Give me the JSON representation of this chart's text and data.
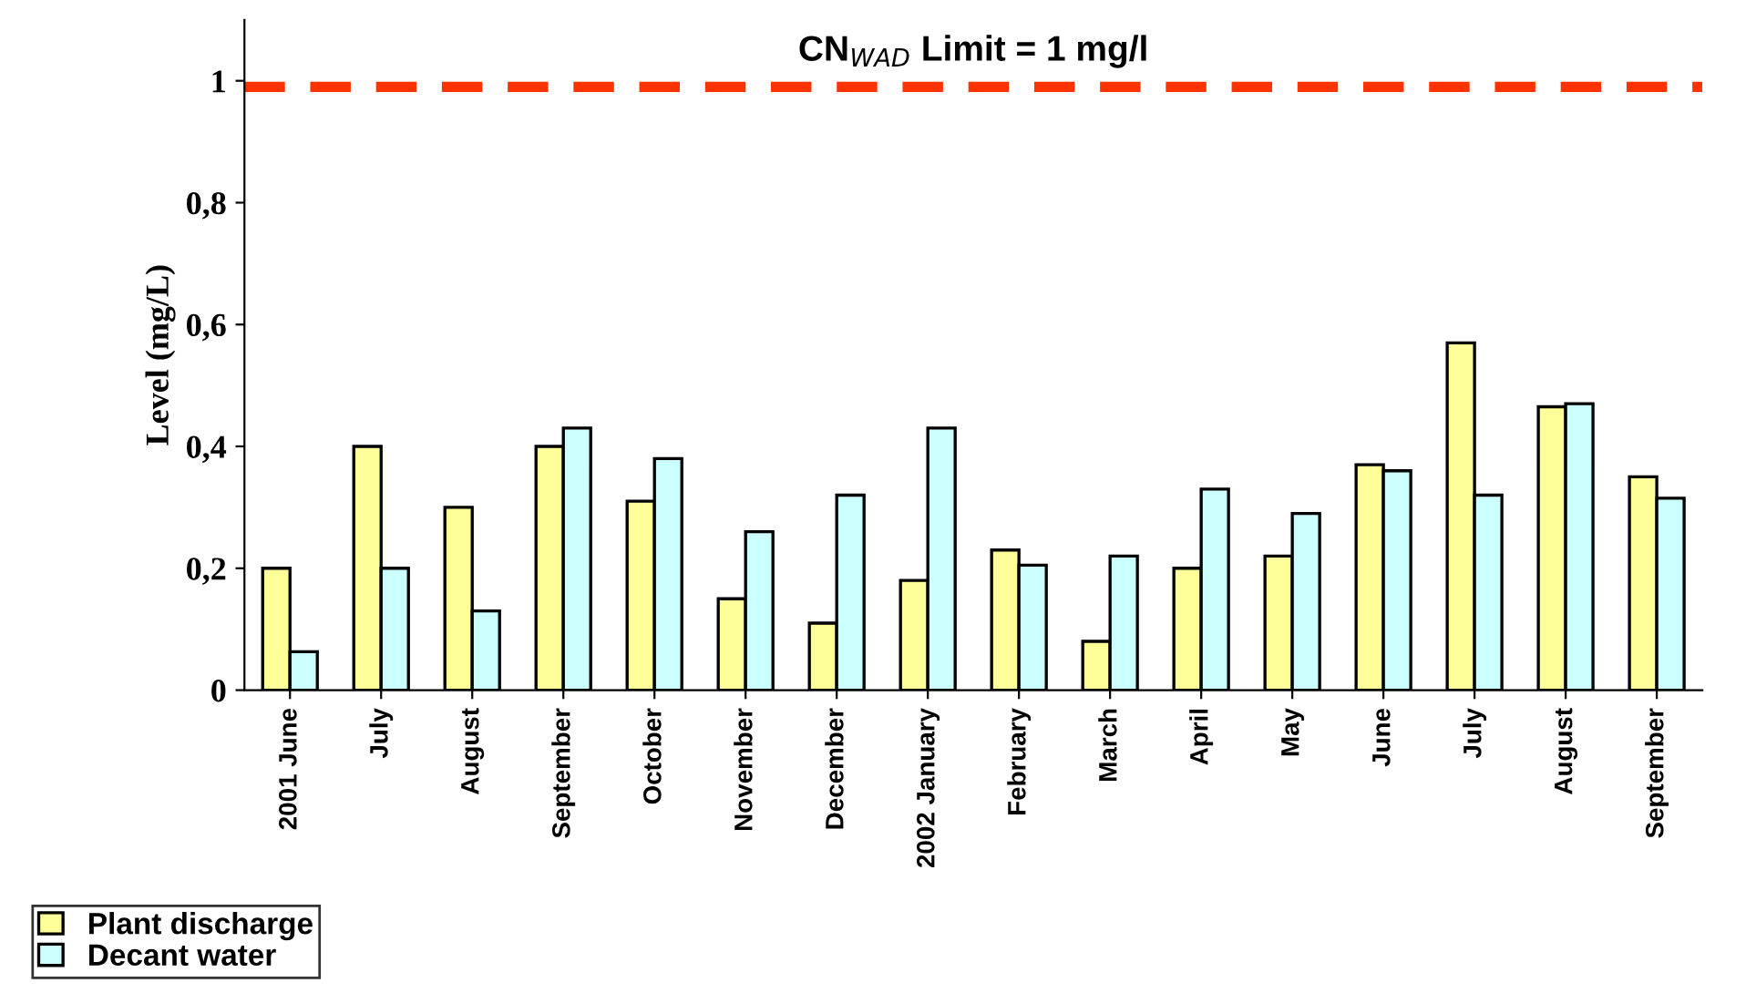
{
  "chart_data": {
    "type": "bar",
    "ylabel": "Level (mg/L)",
    "categories": [
      "2001 June",
      "July",
      "August",
      "September",
      "October",
      "November",
      "December",
      "2002 January",
      "February",
      "March",
      "April",
      "May",
      "June",
      "July",
      "August",
      "September"
    ],
    "series": [
      {
        "name": "Plant discharge",
        "color": "#ffff99",
        "values": [
          0.2,
          0.4,
          0.3,
          0.4,
          0.31,
          0.15,
          0.11,
          0.18,
          0.23,
          0.08,
          0.2,
          0.22,
          0.37,
          0.57,
          0.465,
          0.35
        ]
      },
      {
        "name": "Decant water",
        "color": "#ccffff",
        "values": [
          0.063,
          0.2,
          0.13,
          0.43,
          0.38,
          0.26,
          0.32,
          0.43,
          0.205,
          0.22,
          0.33,
          0.29,
          0.36,
          0.32,
          0.47,
          0.315
        ]
      }
    ],
    "ylim": [
      0,
      1.1
    ],
    "yticks": [
      0,
      {
        "value": 0.2,
        "label": "0,2"
      },
      {
        "value": 0.4,
        "label": "0,4"
      },
      {
        "value": 0.6,
        "label": "0,6"
      },
      {
        "value": 0.8,
        "label": "0,8"
      },
      1
    ],
    "ref_lines": [
      {
        "axis": "y",
        "value": 0.99,
        "label": "CN$_{WAD}$ Limit = 1 mg/l",
        "color": "#ff3300",
        "line_style": "dashed"
      }
    ],
    "grid": false,
    "legend": "bottom left"
  }
}
